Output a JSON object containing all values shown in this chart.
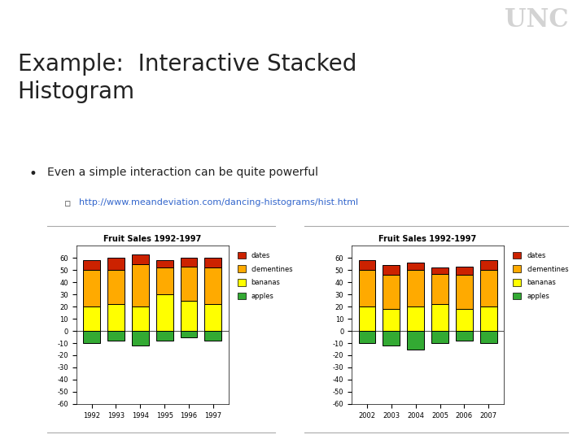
{
  "title": "Example:  Interactive Stacked\nHistogram",
  "bullet1": "Even a simple interaction can be quite powerful",
  "link": "http://www.meandeviation.com/dancing-histograms/hist.html",
  "bg_color": "#ffffff",
  "header_color": "#5a7fa8",
  "unc_text": "UNC",
  "chart_title": "Fruit Sales 1992-1997",
  "years_left": [
    "1992",
    "1993",
    "1994",
    "1995",
    "1996",
    "1997"
  ],
  "years_right": [
    "2002",
    "2003",
    "2004",
    "2005",
    "2006",
    "2007"
  ],
  "legend_labels": [
    "dates",
    "clementines",
    "bananas",
    "apples"
  ],
  "colors": {
    "dates": "#cc2200",
    "clementines": "#ffaa00",
    "bananas": "#ffff00",
    "apples": "#33aa33"
  },
  "data_left": {
    "apples": [
      -10,
      -8,
      -12,
      -8,
      -5,
      -8
    ],
    "bananas": [
      20,
      22,
      20,
      30,
      25,
      22
    ],
    "clementines": [
      30,
      28,
      35,
      22,
      28,
      30
    ],
    "dates": [
      8,
      10,
      8,
      6,
      7,
      8
    ]
  },
  "data_right": {
    "apples": [
      -10,
      -12,
      -15,
      -10,
      -8,
      -10
    ],
    "bananas": [
      20,
      18,
      20,
      22,
      18,
      20
    ],
    "clementines": [
      30,
      28,
      30,
      25,
      28,
      30
    ],
    "dates": [
      8,
      8,
      6,
      5,
      7,
      8
    ]
  },
  "ylim_left": [
    -60,
    70
  ],
  "ylim_right": [
    -60,
    70
  ],
  "yticks_left": [
    60,
    50,
    40,
    30,
    20,
    10,
    0,
    -10,
    -20,
    -30,
    -40,
    -50,
    -60
  ],
  "yticks_right": [
    60,
    50,
    40,
    30,
    20,
    10,
    0,
    -10,
    -20,
    -30,
    -40,
    -50,
    -60
  ],
  "separator_color": "#aaaaaa",
  "bar_edge_color": "#000000",
  "bar_width": 0.7
}
